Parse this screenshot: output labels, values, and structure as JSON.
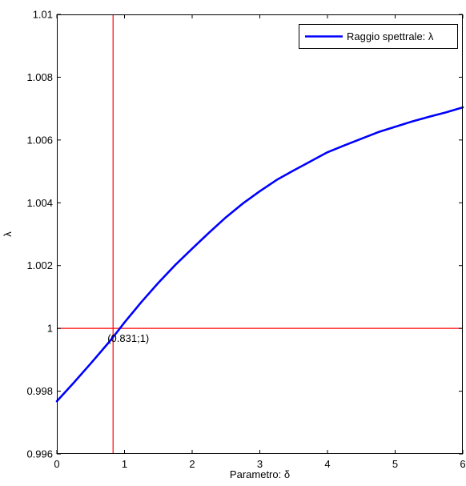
{
  "chart_data": {
    "type": "line",
    "title": "",
    "xlabel": "Parametro: δ",
    "ylabel": "λ",
    "xlim": [
      0,
      6
    ],
    "ylim": [
      0.996,
      1.01
    ],
    "x_ticks": [
      0,
      1,
      2,
      3,
      4,
      5,
      6
    ],
    "x_tick_labels": [
      "0",
      "1",
      "2",
      "3",
      "4",
      "5",
      "6"
    ],
    "y_ticks": [
      0.996,
      0.998,
      1.0,
      1.002,
      1.004,
      1.006,
      1.008,
      1.01
    ],
    "y_tick_labels": [
      "0.996",
      "0.998",
      "1",
      "1.002",
      "1.004",
      "1.006",
      "1.008",
      "1.01"
    ],
    "grid": false,
    "legend_position": "top-right",
    "series": [
      {
        "name": "Raggio spettrale: λ",
        "color": "#0000ff",
        "x": [
          0,
          0.25,
          0.5,
          0.75,
          0.831,
          1.0,
          1.25,
          1.5,
          1.75,
          2.0,
          2.25,
          2.5,
          2.75,
          3.0,
          3.25,
          3.5,
          3.75,
          4.0,
          4.25,
          4.5,
          4.75,
          5.0,
          5.25,
          5.5,
          5.75,
          6.0
        ],
        "y": [
          0.99768,
          0.99827,
          0.99888,
          0.99951,
          0.99972,
          1.00019,
          1.00084,
          1.00145,
          1.00202,
          1.00254,
          1.00305,
          1.00354,
          1.00398,
          1.00437,
          1.00473,
          1.00503,
          1.00532,
          1.00561,
          1.00583,
          1.00604,
          1.00625,
          1.00642,
          1.00659,
          1.00674,
          1.00688,
          1.00704
        ]
      }
    ],
    "reference_lines": [
      {
        "orientation": "vertical",
        "value": 0.831,
        "color": "#ff0000"
      },
      {
        "orientation": "horizontal",
        "value": 1.0,
        "color": "#ff0000"
      }
    ],
    "annotations": [
      {
        "text": "(0.831;1)",
        "x": 0.831,
        "y": 1.0
      }
    ]
  }
}
